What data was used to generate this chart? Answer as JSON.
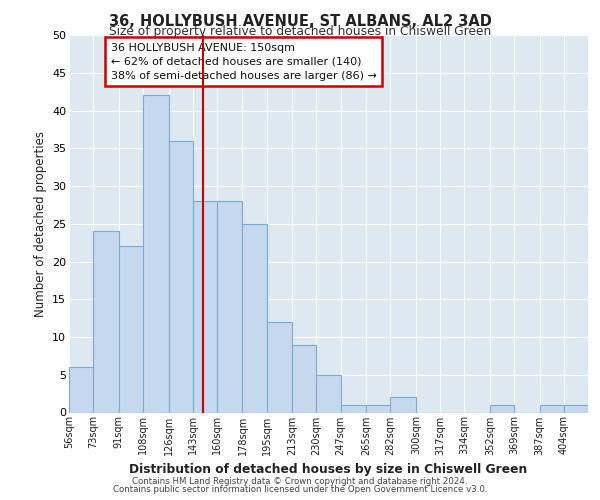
{
  "title": "36, HOLLYBUSH AVENUE, ST ALBANS, AL2 3AD",
  "subtitle": "Size of property relative to detached houses in Chiswell Green",
  "xlabel": "Distribution of detached houses by size in Chiswell Green",
  "ylabel": "Number of detached properties",
  "bin_labels": [
    "56sqm",
    "73sqm",
    "91sqm",
    "108sqm",
    "126sqm",
    "143sqm",
    "160sqm",
    "178sqm",
    "195sqm",
    "213sqm",
    "230sqm",
    "247sqm",
    "265sqm",
    "282sqm",
    "300sqm",
    "317sqm",
    "334sqm",
    "352sqm",
    "369sqm",
    "387sqm",
    "404sqm"
  ],
  "bin_left_edges": [
    56,
    73,
    91,
    108,
    126,
    143,
    160,
    178,
    195,
    213,
    230,
    247,
    265,
    282,
    300,
    317,
    334,
    352,
    369,
    387,
    404
  ],
  "bar_heights": [
    6,
    24,
    22,
    42,
    36,
    28,
    28,
    25,
    12,
    9,
    5,
    1,
    1,
    2,
    0,
    0,
    0,
    1,
    0,
    1,
    1
  ],
  "bar_color": "#c5d8ee",
  "bar_edge_color": "#7aadcf",
  "vline_x": 150,
  "vline_color": "#cc0000",
  "ylim": [
    0,
    50
  ],
  "yticks": [
    0,
    5,
    10,
    15,
    20,
    25,
    30,
    35,
    40,
    45,
    50
  ],
  "annotation_text_line1": "36 HOLLYBUSH AVENUE: 150sqm",
  "annotation_text_line2": "← 62% of detached houses are smaller (140)",
  "annotation_text_line3": "38% of semi-detached houses are larger (86) →",
  "annotation_box_color": "#cc0000",
  "annotation_box_fill": "#ffffff",
  "bg_color": "#dde8f0",
  "grid_color": "#ffffff",
  "footer_line1": "Contains HM Land Registry data © Crown copyright and database right 2024.",
  "footer_line2": "Contains public sector information licensed under the Open Government Licence v3.0."
}
